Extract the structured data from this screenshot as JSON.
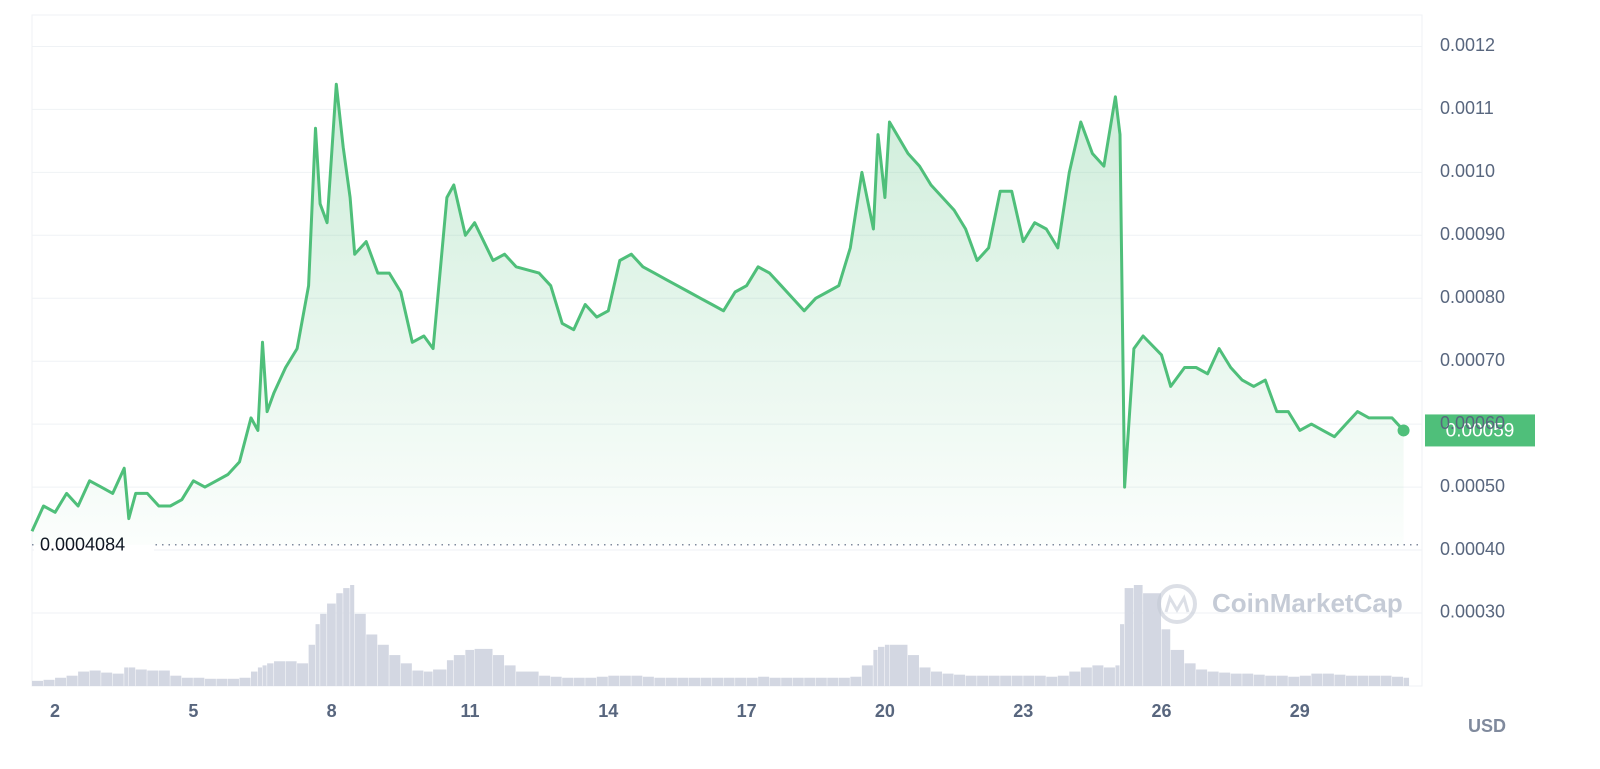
{
  "chart_data": {
    "type": "line",
    "x": [
      1.5,
      1.75,
      2,
      2.25,
      2.5,
      2.75,
      3,
      3.25,
      3.5,
      3.6,
      3.75,
      4,
      4.25,
      4.5,
      4.75,
      5,
      5.25,
      5.5,
      5.75,
      6,
      6.25,
      6.4,
      6.5,
      6.6,
      6.75,
      7,
      7.25,
      7.5,
      7.65,
      7.75,
      7.9,
      8.1,
      8.25,
      8.4,
      8.5,
      8.75,
      9,
      9.25,
      9.5,
      9.75,
      10,
      10.2,
      10.5,
      10.65,
      10.9,
      11.1,
      11.5,
      11.75,
      12,
      12.5,
      12.75,
      13,
      13.25,
      13.5,
      13.75,
      14,
      14.25,
      14.5,
      14.75,
      15,
      15.25,
      15.5,
      15.75,
      16,
      16.25,
      16.5,
      16.75,
      17,
      17.25,
      17.5,
      17.75,
      18,
      18.25,
      18.5,
      18.75,
      19,
      19.25,
      19.5,
      19.75,
      19.85,
      20,
      20.1,
      20.5,
      20.75,
      21,
      21.25,
      21.5,
      21.75,
      22,
      22.25,
      22.5,
      22.75,
      23,
      23.25,
      23.5,
      23.75,
      24,
      24.25,
      24.5,
      24.75,
      25,
      25.1,
      25.2,
      25.4,
      25.6,
      26,
      26.2,
      26.5,
      26.75,
      27,
      27.25,
      27.5,
      27.75,
      28,
      28.25,
      28.5,
      28.75,
      29,
      29.25,
      29.5,
      29.75,
      30,
      30.25,
      30.5,
      30.75,
      31,
      31.25
    ],
    "series": [
      {
        "color": "#4fbf7a",
        "values": [
          0.00043,
          0.00047,
          0.00046,
          0.00049,
          0.00047,
          0.00051,
          0.0005,
          0.00049,
          0.00053,
          0.00045,
          0.00049,
          0.00049,
          0.00047,
          0.00047,
          0.00048,
          0.00051,
          0.0005,
          0.00051,
          0.00052,
          0.00054,
          0.00061,
          0.00059,
          0.00073,
          0.00062,
          0.00065,
          0.00069,
          0.00072,
          0.00082,
          0.00107,
          0.00095,
          0.00092,
          0.00114,
          0.00104,
          0.00096,
          0.00087,
          0.00089,
          0.00084,
          0.00084,
          0.00081,
          0.00073,
          0.00074,
          0.00072,
          0.00096,
          0.00098,
          0.0009,
          0.00092,
          0.00086,
          0.00087,
          0.00085,
          0.00084,
          0.00082,
          0.00076,
          0.00075,
          0.00079,
          0.00077,
          0.00078,
          0.00086,
          0.00087,
          0.00085,
          0.00084,
          0.00083,
          0.00082,
          0.00081,
          0.0008,
          0.00079,
          0.00078,
          0.00081,
          0.00082,
          0.00085,
          0.00084,
          0.00082,
          0.0008,
          0.00078,
          0.0008,
          0.00081,
          0.00082,
          0.00088,
          0.001,
          0.00091,
          0.00106,
          0.00096,
          0.00108,
          0.00103,
          0.00101,
          0.00098,
          0.00096,
          0.00094,
          0.00091,
          0.00086,
          0.00088,
          0.00097,
          0.00097,
          0.00089,
          0.00092,
          0.00091,
          0.00088,
          0.001,
          0.00108,
          0.00103,
          0.00101,
          0.00112,
          0.00106,
          0.0005,
          0.00072,
          0.00074,
          0.00071,
          0.00066,
          0.00069,
          0.00069,
          0.00068,
          0.00072,
          0.00069,
          0.00067,
          0.00066,
          0.00067,
          0.00062,
          0.00062,
          0.00059,
          0.0006,
          0.00059,
          0.00058,
          0.0006,
          0.00062,
          0.00061,
          0.00061,
          0.00061,
          0.00059
        ]
      }
    ],
    "volume": [
      5,
      6,
      8,
      10,
      14,
      15,
      13,
      12,
      18,
      18,
      16,
      15,
      15,
      10,
      8,
      8,
      7,
      7,
      7,
      8,
      14,
      18,
      20,
      22,
      24,
      24,
      22,
      40,
      60,
      70,
      80,
      90,
      95,
      98,
      70,
      50,
      40,
      30,
      22,
      15,
      14,
      16,
      25,
      30,
      35,
      36,
      30,
      20,
      14,
      10,
      9,
      8,
      8,
      8,
      9,
      10,
      10,
      10,
      9,
      8,
      8,
      8,
      8,
      8,
      8,
      8,
      8,
      8,
      9,
      8,
      8,
      8,
      8,
      8,
      8,
      8,
      9,
      20,
      35,
      38,
      40,
      40,
      30,
      18,
      14,
      12,
      11,
      10,
      10,
      10,
      10,
      10,
      10,
      10,
      9,
      10,
      14,
      18,
      20,
      18,
      20,
      60,
      95,
      98,
      90,
      55,
      35,
      22,
      16,
      14,
      13,
      12,
      12,
      11,
      10,
      10,
      9,
      10,
      12,
      12,
      11,
      10,
      10,
      10,
      10,
      9,
      8
    ],
    "volume_color": "#d3d7e2",
    "low": 0.0004084,
    "xlim": [
      1.5,
      31.65
    ],
    "xticks": [
      2,
      5,
      8,
      11,
      14,
      17,
      20,
      23,
      26,
      29
    ],
    "ylim": [
      0.000184,
      0.00125
    ],
    "yticks": [
      0.0012,
      0.0011,
      {
        "value": 0.001,
        "label": "0.0010"
      },
      {
        "value": 0.0009,
        "label": "0.00090"
      },
      {
        "value": 0.0008,
        "label": "0.00080"
      },
      {
        "value": 0.0007,
        "label": "0.00070"
      },
      {
        "value": 0.0006,
        "label": "0.00060"
      },
      {
        "value": 0.0005,
        "label": "0.00050"
      },
      {
        "value": 0.0004,
        "label": "0.00040"
      },
      {
        "value": 0.0003,
        "label": "0.00030"
      }
    ],
    "y_label": "USD",
    "watermark": "CoinMarketCap",
    "grid": true
  }
}
